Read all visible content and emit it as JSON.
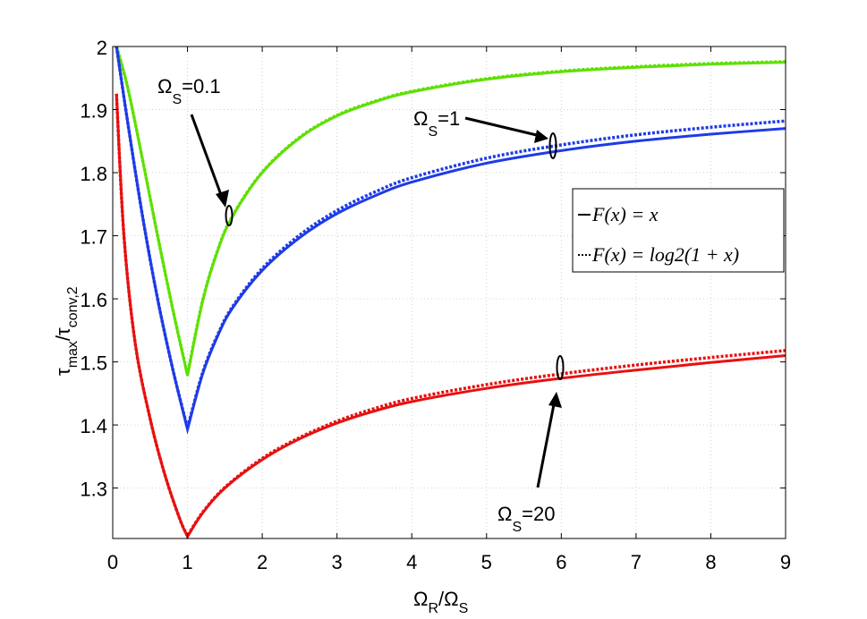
{
  "chart_data": {
    "type": "line",
    "xlabel": {
      "main": "Ω",
      "sub1": "R",
      "mid": "/Ω",
      "sub2": "S"
    },
    "ylabel": {
      "main": "τ",
      "sub1": "max",
      "mid": "/τ",
      "sub2": "conv,2"
    },
    "xlim": [
      0,
      9
    ],
    "ylim": [
      1.22,
      2.0
    ],
    "xticks": [
      0,
      1,
      2,
      3,
      4,
      5,
      6,
      7,
      8,
      9
    ],
    "yticks": [
      1.3,
      1.4,
      1.5,
      1.6,
      1.7,
      1.8,
      1.9,
      2
    ],
    "grid": true,
    "legend": {
      "placement": "right-middle",
      "entries": [
        {
          "text": "F(x) = x",
          "style": "solid"
        },
        {
          "text": "F(x) = log2(1 + x)",
          "style": "dotted"
        }
      ]
    },
    "series": [
      {
        "curve": "Ωs = 0.1",
        "color": "#5ee000",
        "style": "solid",
        "x": [
          0.05,
          0.2,
          0.4,
          0.6,
          0.8,
          1.0,
          1.2,
          1.4,
          1.6,
          2.0,
          2.5,
          3.0,
          3.5,
          4.0,
          5.0,
          6.0,
          7.0,
          8.0,
          9.0
        ],
        "y": [
          2.0,
          1.935,
          1.82,
          1.7,
          1.585,
          1.478,
          1.595,
          1.675,
          1.73,
          1.8,
          1.855,
          1.89,
          1.912,
          1.928,
          1.948,
          1.96,
          1.967,
          1.972,
          1.975
        ]
      },
      {
        "curve": "Ωs = 0.1",
        "color": "#5ee000",
        "style": "dotted",
        "x": [
          0.05,
          0.2,
          0.4,
          0.6,
          0.8,
          1.0,
          1.2,
          1.4,
          1.6,
          2.0,
          2.5,
          3.0,
          3.5,
          4.0,
          5.0,
          6.0,
          7.0,
          8.0,
          9.0
        ],
        "y": [
          2.0,
          1.935,
          1.82,
          1.7,
          1.585,
          1.48,
          1.596,
          1.676,
          1.731,
          1.801,
          1.856,
          1.891,
          1.913,
          1.929,
          1.949,
          1.961,
          1.968,
          1.973,
          1.976
        ]
      },
      {
        "curve": "Ωs = 1",
        "color": "#1e3be6",
        "style": "solid",
        "x": [
          0.05,
          0.2,
          0.4,
          0.6,
          0.8,
          1.0,
          1.2,
          1.4,
          1.6,
          2.0,
          2.5,
          3.0,
          3.5,
          4.0,
          5.0,
          6.0,
          7.0,
          8.0,
          9.0
        ],
        "y": [
          2.0,
          1.88,
          1.73,
          1.6,
          1.49,
          1.393,
          1.48,
          1.54,
          1.585,
          1.645,
          1.697,
          1.735,
          1.763,
          1.785,
          1.815,
          1.835,
          1.85,
          1.861,
          1.87
        ]
      },
      {
        "curve": "Ωs = 1",
        "color": "#1e3be6",
        "style": "dotted",
        "x": [
          0.05,
          0.2,
          0.4,
          0.6,
          0.8,
          1.0,
          1.2,
          1.4,
          1.6,
          2.0,
          2.5,
          3.0,
          3.5,
          4.0,
          5.0,
          6.0,
          7.0,
          8.0,
          9.0
        ],
        "y": [
          2.0,
          1.88,
          1.73,
          1.6,
          1.49,
          1.395,
          1.482,
          1.542,
          1.587,
          1.648,
          1.701,
          1.74,
          1.769,
          1.792,
          1.823,
          1.844,
          1.86,
          1.872,
          1.882
        ]
      },
      {
        "curve": "Ωs = 20",
        "color": "#e81010",
        "style": "solid",
        "x": [
          0.05,
          0.15,
          0.3,
          0.5,
          0.7,
          0.9,
          1.0,
          1.2,
          1.5,
          2.0,
          2.5,
          3.0,
          3.5,
          4.0,
          5.0,
          6.0,
          7.0,
          8.0,
          9.0
        ],
        "y": [
          1.925,
          1.7,
          1.53,
          1.41,
          1.32,
          1.25,
          1.223,
          1.26,
          1.3,
          1.345,
          1.378,
          1.403,
          1.422,
          1.437,
          1.458,
          1.474,
          1.487,
          1.499,
          1.51
        ]
      },
      {
        "curve": "Ωs = 20",
        "color": "#e81010",
        "style": "dotted",
        "x": [
          0.05,
          0.15,
          0.3,
          0.5,
          0.7,
          0.9,
          1.0,
          1.2,
          1.5,
          2.0,
          2.5,
          3.0,
          3.5,
          4.0,
          5.0,
          6.0,
          7.0,
          8.0,
          9.0
        ],
        "y": [
          1.925,
          1.7,
          1.53,
          1.41,
          1.32,
          1.25,
          1.224,
          1.261,
          1.301,
          1.347,
          1.38,
          1.406,
          1.426,
          1.442,
          1.464,
          1.481,
          1.495,
          1.507,
          1.518
        ]
      }
    ],
    "annotations": [
      {
        "id": "ann-01",
        "main": "Ω",
        "sub": "S",
        "tail": "=0.1",
        "target": [
          1.57,
          1.72
        ]
      },
      {
        "id": "ann-1",
        "main": "Ω",
        "sub": "S",
        "tail": "=1",
        "target": [
          5.92,
          1.845
        ]
      },
      {
        "id": "ann-20",
        "main": "Ω",
        "sub": "S",
        "tail": "=20",
        "target": [
          6.0,
          1.478
        ]
      }
    ]
  }
}
